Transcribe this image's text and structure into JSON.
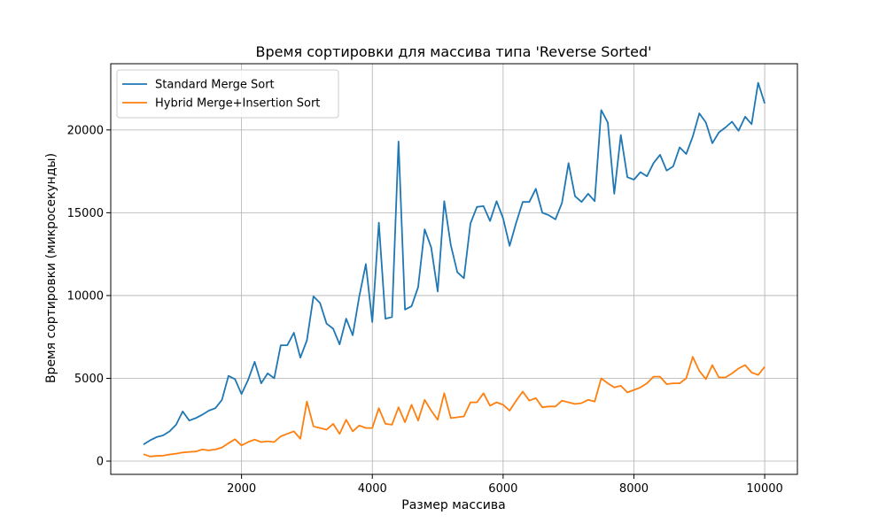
{
  "chart_data": {
    "type": "line",
    "title": "Время сортировки для массива типа 'Reverse Sorted'",
    "xlabel": "Размер массива",
    "ylabel": "Время сортировки (микросекунды)",
    "xlim": [
      0,
      10500
    ],
    "ylim": [
      -800,
      24000
    ],
    "xticks": [
      2000,
      4000,
      6000,
      8000,
      10000
    ],
    "xtick_labels": [
      "2000",
      "4000",
      "6000",
      "8000",
      "10000"
    ],
    "yticks": [
      0,
      5000,
      10000,
      15000,
      20000
    ],
    "ytick_labels": [
      "0",
      "5000",
      "10000",
      "15000",
      "20000"
    ],
    "grid": true,
    "legend_position": "top-left",
    "x": [
      500,
      600,
      700,
      800,
      900,
      1000,
      1100,
      1200,
      1300,
      1400,
      1500,
      1600,
      1700,
      1800,
      1900,
      2000,
      2100,
      2200,
      2300,
      2400,
      2500,
      2600,
      2700,
      2800,
      2900,
      3000,
      3100,
      3200,
      3300,
      3400,
      3500,
      3600,
      3700,
      3800,
      3900,
      4000,
      4100,
      4200,
      4300,
      4400,
      4500,
      4600,
      4700,
      4800,
      4900,
      5000,
      5100,
      5200,
      5300,
      5400,
      5500,
      5600,
      5700,
      5800,
      5900,
      6000,
      6100,
      6200,
      6300,
      6400,
      6500,
      6600,
      6700,
      6800,
      6900,
      7000,
      7100,
      7200,
      7300,
      7400,
      7500,
      7600,
      7700,
      7800,
      7900,
      8000,
      8100,
      8200,
      8300,
      8400,
      8500,
      8600,
      8700,
      8800,
      8900,
      9000,
      9100,
      9200,
      9300,
      9400,
      9500,
      9600,
      9700,
      9800,
      9900,
      10000
    ],
    "series": [
      {
        "name": "Standard Merge Sort",
        "color": "#1f77b4",
        "values": [
          1000,
          1250,
          1450,
          1550,
          1800,
          2200,
          3000,
          2450,
          2600,
          2800,
          3050,
          3200,
          3700,
          5150,
          4950,
          4050,
          4900,
          6000,
          4700,
          5300,
          5000,
          7000,
          7000,
          7750,
          6250,
          7300,
          9950,
          9550,
          8300,
          8000,
          7050,
          8600,
          7600,
          9950,
          11900,
          8400,
          14400,
          8600,
          8700,
          19300,
          9150,
          9350,
          10500,
          14000,
          12900,
          10250,
          15700,
          13050,
          11400,
          11050,
          14350,
          15350,
          15400,
          14500,
          15700,
          14650,
          13000,
          14400,
          15650,
          15650,
          16450,
          15000,
          14850,
          14600,
          15600,
          18000,
          16000,
          15650,
          16150,
          15700,
          21200,
          20450,
          16150,
          19700,
          17150,
          17000,
          17450,
          17200,
          18000,
          18500,
          17550,
          17800,
          18950,
          18550,
          19600,
          21000,
          20450,
          19200,
          19850,
          20150,
          20500,
          19950,
          20800,
          20350,
          22850,
          21600
        ]
      },
      {
        "name": "Hybrid Merge+Insertion Sort",
        "color": "#ff7f0e",
        "values": [
          420,
          280,
          310,
          330,
          400,
          450,
          520,
          560,
          580,
          700,
          650,
          700,
          820,
          1080,
          1320,
          950,
          1150,
          1300,
          1150,
          1200,
          1150,
          1500,
          1650,
          1800,
          1350,
          3600,
          2100,
          2000,
          1900,
          2250,
          1650,
          2500,
          1800,
          2150,
          2000,
          2000,
          3200,
          2250,
          2200,
          3250,
          2350,
          3400,
          2450,
          3700,
          3050,
          2500,
          4100,
          2600,
          2650,
          2700,
          3550,
          3550,
          4100,
          3350,
          3550,
          3400,
          3050,
          3650,
          4200,
          3650,
          3800,
          3250,
          3300,
          3300,
          3650,
          3550,
          3450,
          3500,
          3700,
          3600,
          5000,
          4700,
          4450,
          4550,
          4150,
          4300,
          4450,
          4700,
          5100,
          5100,
          4650,
          4700,
          4700,
          5000,
          6300,
          5450,
          4950,
          5800,
          5050,
          5050,
          5300,
          5600,
          5800,
          5350,
          5200,
          5700
        ]
      }
    ]
  }
}
